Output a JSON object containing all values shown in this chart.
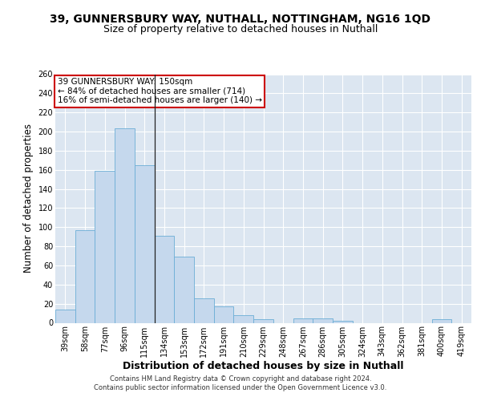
{
  "title_line1": "39, GUNNERSBURY WAY, NUTHALL, NOTTINGHAM, NG16 1QD",
  "title_line2": "Size of property relative to detached houses in Nuthall",
  "xlabel": "Distribution of detached houses by size in Nuthall",
  "ylabel": "Number of detached properties",
  "categories": [
    "39sqm",
    "58sqm",
    "77sqm",
    "96sqm",
    "115sqm",
    "134sqm",
    "153sqm",
    "172sqm",
    "191sqm",
    "210sqm",
    "229sqm",
    "248sqm",
    "267sqm",
    "286sqm",
    "305sqm",
    "324sqm",
    "343sqm",
    "362sqm",
    "381sqm",
    "400sqm",
    "419sqm"
  ],
  "values": [
    14,
    97,
    159,
    203,
    165,
    91,
    69,
    26,
    17,
    8,
    4,
    0,
    5,
    5,
    2,
    0,
    0,
    0,
    0,
    4,
    0
  ],
  "bar_color": "#c5d8ed",
  "bar_edge_color": "#6baed6",
  "annotation_text": "39 GUNNERSBURY WAY: 150sqm\n← 84% of detached houses are smaller (714)\n16% of semi-detached houses are larger (140) →",
  "annotation_box_color": "#ffffff",
  "annotation_box_edge": "#cc0000",
  "vertical_line_x": 4.5,
  "ylim": [
    0,
    260
  ],
  "yticks": [
    0,
    20,
    40,
    60,
    80,
    100,
    120,
    140,
    160,
    180,
    200,
    220,
    240,
    260
  ],
  "plot_bg_color": "#dce6f1",
  "footer_line1": "Contains HM Land Registry data © Crown copyright and database right 2024.",
  "footer_line2": "Contains public sector information licensed under the Open Government Licence v3.0.",
  "title_fontsize": 10,
  "subtitle_fontsize": 9,
  "tick_fontsize": 7,
  "ylabel_fontsize": 8.5,
  "xlabel_fontsize": 9,
  "footer_fontsize": 6,
  "annotation_fontsize": 7.5
}
